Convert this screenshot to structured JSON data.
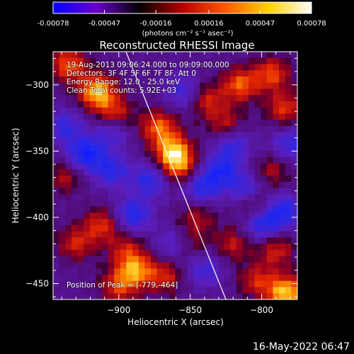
{
  "colorbar": {
    "ticks": [
      "-0.00078",
      "-0.00047",
      "-0.00016",
      "0.00016",
      "0.00047",
      "0.00078"
    ],
    "units": "(photons cm⁻² s⁻¹ asec⁻²)",
    "colors": [
      "#0000ff",
      "#6a00c8",
      "#000000",
      "#b40000",
      "#ff5a00",
      "#ffd000",
      "#ffffff"
    ]
  },
  "chart_data": {
    "type": "heatmap",
    "title": "Reconstructed RHESSI Image",
    "xlabel": "Heliocentric X (arcsec)",
    "ylabel": "Heliocentric Y (arcsec)",
    "xlim": [
      -946,
      -775
    ],
    "ylim": [
      -462,
      -275
    ],
    "x_ticks": [
      -900,
      -850,
      -800
    ],
    "y_ticks": [
      -300,
      -350,
      -400,
      -450
    ],
    "x_tick_labels": [
      "−900",
      "−850",
      "−800"
    ],
    "y_tick_labels": [
      "−300",
      "−350",
      "−400",
      "−450"
    ],
    "clim": [
      -0.00078,
      0.00078
    ],
    "limb_line": [
      [
        -895,
        -275
      ],
      [
        -825,
        -462
      ]
    ],
    "hot_spots": [
      {
        "x": -935,
        "y": -285,
        "v": 0.00055
      },
      {
        "x": -915,
        "y": -305,
        "v": 0.00078
      },
      {
        "x": -903,
        "y": -322,
        "v": 0.00045
      },
      {
        "x": -872,
        "y": -332,
        "v": 0.00055
      },
      {
        "x": -862,
        "y": -350,
        "v": 0.00068
      },
      {
        "x": -858,
        "y": -362,
        "v": 0.0005
      },
      {
        "x": -838,
        "y": -312,
        "v": 0.0004
      },
      {
        "x": -815,
        "y": -300,
        "v": 0.00055
      },
      {
        "x": -793,
        "y": -292,
        "v": 0.0005
      },
      {
        "x": -784,
        "y": -318,
        "v": 0.00045
      },
      {
        "x": -825,
        "y": -330,
        "v": 0.00035
      },
      {
        "x": -912,
        "y": -406,
        "v": 0.00045
      },
      {
        "x": -930,
        "y": -420,
        "v": 0.0004
      },
      {
        "x": -895,
        "y": -425,
        "v": 0.00035
      },
      {
        "x": -888,
        "y": -440,
        "v": 0.0006
      },
      {
        "x": -900,
        "y": -452,
        "v": 0.00045
      },
      {
        "x": -868,
        "y": -445,
        "v": 0.0004
      },
      {
        "x": -852,
        "y": -420,
        "v": 0.00035
      },
      {
        "x": -820,
        "y": -420,
        "v": 0.00035
      },
      {
        "x": -803,
        "y": -448,
        "v": 0.0004
      },
      {
        "x": -790,
        "y": -425,
        "v": 0.0004
      },
      {
        "x": -783,
        "y": -457,
        "v": 0.00078
      },
      {
        "x": -805,
        "y": -390,
        "v": 0.0004
      },
      {
        "x": -845,
        "y": -400,
        "v": 0.0003
      },
      {
        "x": -793,
        "y": -365,
        "v": 0.0003
      },
      {
        "x": -938,
        "y": -370,
        "v": 0.0003
      }
    ],
    "cold_spots": [
      {
        "x": -923,
        "y": -352,
        "v": -0.0006
      },
      {
        "x": -905,
        "y": -365,
        "v": -0.00045
      },
      {
        "x": -890,
        "y": -398,
        "v": -0.0005
      },
      {
        "x": -878,
        "y": -372,
        "v": -0.00045
      },
      {
        "x": -842,
        "y": -378,
        "v": -0.00045
      },
      {
        "x": -828,
        "y": -365,
        "v": -0.0005
      },
      {
        "x": -810,
        "y": -380,
        "v": -0.00045
      },
      {
        "x": -820,
        "y": -345,
        "v": -0.0004
      },
      {
        "x": -800,
        "y": -405,
        "v": -0.0005
      },
      {
        "x": -785,
        "y": -395,
        "v": -0.0005
      },
      {
        "x": -860,
        "y": -420,
        "v": -0.0004
      },
      {
        "x": -938,
        "y": -332,
        "v": -0.0004
      },
      {
        "x": -905,
        "y": -335,
        "v": -0.00035
      },
      {
        "x": -855,
        "y": -305,
        "v": -0.00035
      },
      {
        "x": -780,
        "y": -345,
        "v": -0.0004
      },
      {
        "x": -840,
        "y": -440,
        "v": -0.00035
      }
    ]
  },
  "overlay": {
    "time": "19-Aug-2013 09:06:24.000 to 09:09:00.000",
    "detectors": "Detectors: 3F 4F 5F 6F 7F 8F, Att 0",
    "energy": "Energy Range: 12.0 - 25.0 keV",
    "clean": "Clean    Total counts: 5.92E+03",
    "peak": "Position of Peak = [-779,-464]"
  },
  "timestamp": "16-May-2022 06:47"
}
